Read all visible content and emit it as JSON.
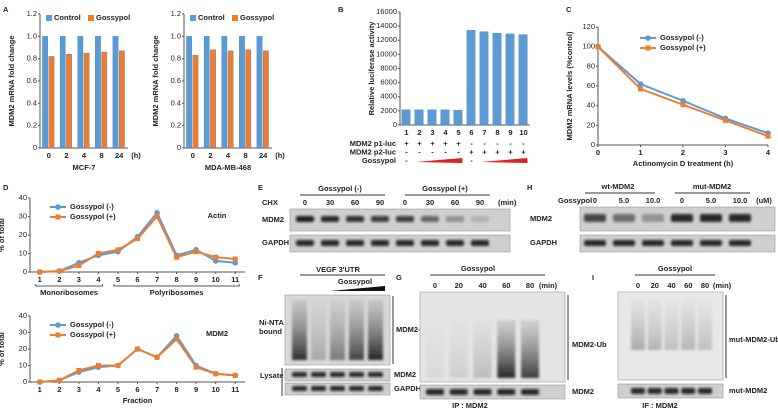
{
  "chart_data": [
    {
      "panel": "A",
      "type": "bar",
      "ylabel": "MDM2 mRNA fold change",
      "xlabel": "MCF-7",
      "x_unit": "(h)",
      "categories": [
        "0",
        "2",
        "4",
        "8",
        "24"
      ],
      "series": [
        {
          "name": "Control",
          "color": "#5b9bd5",
          "values": [
            1,
            1,
            1,
            1,
            1
          ]
        },
        {
          "name": "Gossypol",
          "color": "#ed7d31",
          "values": [
            0.82,
            0.84,
            0.85,
            0.86,
            0.87
          ]
        }
      ],
      "ylim": [
        0,
        1.2
      ],
      "yticks": [
        0,
        0.2,
        0.4,
        0.6,
        0.8,
        {
          "value": 1,
          "label": "1.0"
        },
        1.2
      ]
    },
    {
      "type": "bar",
      "ylabel": "MDM2 mRNA fold change",
      "xlabel": "MDA-MB-468",
      "x_unit": "(h)",
      "categories": [
        "0",
        "2",
        "4",
        "8",
        "24"
      ],
      "series": [
        {
          "name": "Control",
          "color": "#5b9bd5",
          "values": [
            1,
            1,
            1,
            1,
            1
          ]
        },
        {
          "name": "Gossypol",
          "color": "#ed7d31",
          "values": [
            0.83,
            0.88,
            0.87,
            0.88,
            0.87
          ]
        }
      ],
      "ylim": [
        0,
        1.2
      ],
      "yticks": [
        0,
        0.2,
        0.4,
        0.6,
        0.8,
        {
          "value": 1,
          "label": "1.0"
        },
        1.2
      ]
    },
    {
      "panel": "B",
      "type": "bar",
      "ylabel": "Relative luciferase activity",
      "categories": [
        "1",
        "2",
        "3",
        "4",
        "5",
        "6",
        "7",
        "8",
        "9",
        "10"
      ],
      "values": [
        2150,
        2150,
        2150,
        2150,
        2100,
        13400,
        13200,
        13000,
        12900,
        12800
      ],
      "color": "#5b9bd5",
      "ylim": [
        0,
        16000
      ],
      "yticks": [
        0,
        2000,
        4000,
        6000,
        8000,
        10000,
        12000,
        14000,
        16000
      ],
      "table": [
        {
          "label": "MDM2 p1-luc",
          "marks": [
            "+",
            "+",
            "+",
            "+",
            "+",
            "-",
            "-",
            "-",
            "-",
            "-"
          ]
        },
        {
          "label": "MDM2 p2-luc",
          "marks": [
            "-",
            "-",
            "-",
            "-",
            "-",
            "+",
            "+",
            "+",
            "+",
            "+"
          ]
        },
        {
          "label": "Gossypol",
          "marks": [
            "-",
            null,
            null,
            null,
            null,
            "-",
            null,
            null,
            null,
            null
          ]
        }
      ]
    },
    {
      "panel": "C",
      "type": "line",
      "ylabel": "MDM2 mRNA levels (%control)",
      "xlabel": "Actinomycin D treatment (h)",
      "x": [
        0,
        1,
        2,
        3,
        4
      ],
      "series": [
        {
          "name": "Gossypol (-)",
          "color": "#5b9bd5",
          "values": [
            100,
            62,
            45,
            27,
            12
          ]
        },
        {
          "name": "Gossypol (+)",
          "color": "#ed7d31",
          "values": [
            100,
            57,
            41,
            25,
            9
          ]
        }
      ],
      "xlim": [
        0,
        4
      ],
      "xticks": [
        0,
        1,
        2,
        3,
        4
      ],
      "ylim": [
        0,
        120
      ],
      "yticks": [
        0,
        20,
        40,
        60,
        80,
        100,
        120
      ]
    },
    {
      "panel": "D",
      "type": "line",
      "title": "Actin",
      "ylabel": "% of total",
      "x": [
        1,
        2,
        3,
        4,
        5,
        6,
        7,
        8,
        9,
        10,
        11
      ],
      "series": [
        {
          "name": "Gossypol (-)",
          "color": "#5b9bd5",
          "values": [
            0,
            0.5,
            5,
            9,
            11,
            19,
            32,
            9,
            12,
            6,
            5
          ]
        },
        {
          "name": "Gossypol (+)",
          "color": "#ed7d31",
          "values": [
            0,
            0.5,
            3.5,
            10,
            12,
            18,
            30,
            8,
            11,
            8,
            7
          ]
        }
      ],
      "xlim": [
        0.5,
        11.5
      ],
      "xticks": [
        1,
        2,
        3,
        4,
        5,
        6,
        7,
        8,
        9,
        10,
        11
      ],
      "ylim": [
        0,
        40
      ],
      "yticks": [
        0,
        10,
        20,
        30,
        40
      ],
      "groups": [
        {
          "label": "Monoribosomes",
          "from": 1,
          "to": 4
        },
        {
          "label": "Polyribosomes",
          "from": 5,
          "to": 11
        }
      ]
    },
    {
      "type": "line",
      "title": "MDM2",
      "ylabel": "% of total",
      "xlabel": "Fraction",
      "x": [
        1,
        2,
        3,
        4,
        5,
        6,
        7,
        8,
        9,
        10,
        11
      ],
      "series": [
        {
          "name": "Gossypol (-)",
          "color": "#5b9bd5",
          "values": [
            0,
            1,
            6,
            9,
            10,
            20,
            15,
            28,
            10,
            5,
            4
          ]
        },
        {
          "name": "Gossypol (+)",
          "color": "#ed7d31",
          "values": [
            0,
            1,
            7,
            10,
            10,
            20,
            15,
            26,
            9,
            5,
            4
          ]
        }
      ],
      "xlim": [
        0.5,
        11.5
      ],
      "xticks": [
        1,
        2,
        3,
        4,
        5,
        6,
        7,
        8,
        9,
        10,
        11
      ],
      "ylim": [
        0,
        40
      ],
      "yticks": [
        0,
        10,
        20,
        30,
        40
      ]
    }
  ],
  "blots": {
    "E": {
      "letter": "E",
      "treatment": "CHX",
      "groups": [
        "Gossypol (-)",
        "Gossypol (+)"
      ],
      "lanes": [
        "0",
        "30",
        "60",
        "90",
        "0",
        "30",
        "60",
        "90"
      ],
      "unit": "(min)",
      "rows": [
        "MDM2",
        "GAPDH"
      ]
    },
    "H": {
      "letter": "H",
      "treatment": "Gossypol",
      "groups": [
        "wt-MDM2",
        "mut-MDM2"
      ],
      "lanes": [
        "0",
        "5.0",
        "10.0",
        "0",
        "5.0",
        "10.0"
      ],
      "unit": "(uM)",
      "rows": [
        "MDM2",
        "GAPDH"
      ]
    },
    "F": {
      "letter": "F",
      "probe": "VEGF 3'UTR",
      "treatment": "Gossypol",
      "sections": [
        "Ni-NTA bound",
        "Lysate"
      ],
      "rows": [
        "MDM2-Ub",
        "MDM2",
        "GAPDH"
      ]
    },
    "G": {
      "letter": "G",
      "treatment": "Gossypol",
      "lanes": [
        "0",
        "20",
        "40",
        "60",
        "80"
      ],
      "unit": "(min)",
      "rows": [
        "MDM2-Ub",
        "MDM2"
      ],
      "ip": "IP : MDM2"
    },
    "I": {
      "letter": "I",
      "treatment": "Gossypol",
      "lanes": [
        "0",
        "20",
        "40",
        "60",
        "80"
      ],
      "unit": "(min)",
      "rows": [
        "mut-MDM2-Ub",
        "mut-MDM2"
      ],
      "ip": "IF : MDM2"
    }
  }
}
